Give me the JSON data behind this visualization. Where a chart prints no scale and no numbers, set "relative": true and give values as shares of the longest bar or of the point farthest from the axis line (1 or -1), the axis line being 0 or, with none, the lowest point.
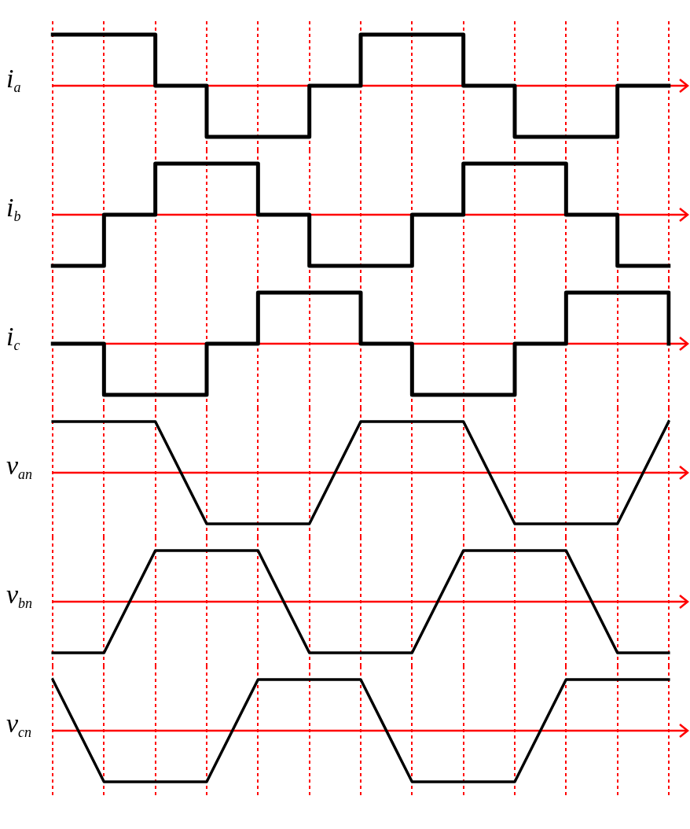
{
  "chart_data": [
    {
      "type": "step",
      "ylabel": "i$_{a}$",
      "relative": true,
      "grid": "x",
      "marker": "none",
      "categories": [
        null,
        null,
        null,
        null,
        null,
        null,
        null,
        null,
        null,
        null,
        null,
        null,
        null
      ],
      "ref_lines": [
        {
          "axis": "y",
          "value": 0,
          "color": "#ff0000"
        }
      ],
      "series": [
        {
          "color": "#000000",
          "values": [
            1,
            1,
            0,
            -1,
            -1,
            0,
            1,
            1,
            0,
            -1,
            -1,
            0,
            0
          ]
        }
      ]
    },
    {
      "type": "step",
      "ylabel": "i$_{b}$",
      "relative": true,
      "grid": "x",
      "marker": "none",
      "categories": [
        null,
        null,
        null,
        null,
        null,
        null,
        null,
        null,
        null,
        null,
        null,
        null,
        null
      ],
      "ref_lines": [
        {
          "axis": "y",
          "value": 0,
          "color": "#ff0000"
        }
      ],
      "series": [
        {
          "color": "#000000",
          "values": [
            -1,
            0,
            1,
            1,
            0,
            -1,
            -1,
            0,
            1,
            1,
            0,
            -1,
            -1
          ]
        }
      ]
    },
    {
      "type": "step",
      "ylabel": "i$_{c}$",
      "relative": true,
      "grid": "x",
      "marker": "none",
      "categories": [
        null,
        null,
        null,
        null,
        null,
        null,
        null,
        null,
        null,
        null,
        null,
        null,
        null
      ],
      "ref_lines": [
        {
          "axis": "y",
          "value": 0,
          "color": "#ff0000"
        }
      ],
      "series": [
        {
          "color": "#000000",
          "values": [
            0,
            -1,
            -1,
            0,
            1,
            1,
            0,
            -1,
            -1,
            0,
            1,
            1,
            0
          ]
        }
      ]
    },
    {
      "type": "line",
      "ylabel": "v$_{an}$",
      "relative": true,
      "grid": "x",
      "marker": "none",
      "categories": [
        null,
        null,
        null,
        null,
        null,
        null,
        null,
        null,
        null,
        null,
        null,
        null,
        null
      ],
      "ref_lines": [
        {
          "axis": "y",
          "value": 0,
          "color": "#ff0000"
        }
      ],
      "series": [
        {
          "color": "#000000",
          "values": [
            1,
            1,
            1,
            -1,
            -1,
            -1,
            1,
            1,
            1,
            -1,
            -1,
            -1,
            1
          ]
        }
      ]
    },
    {
      "type": "line",
      "ylabel": "v$_{bn}$",
      "relative": true,
      "grid": "x",
      "marker": "none",
      "categories": [
        null,
        null,
        null,
        null,
        null,
        null,
        null,
        null,
        null,
        null,
        null,
        null,
        null
      ],
      "ref_lines": [
        {
          "axis": "y",
          "value": 0,
          "color": "#ff0000"
        }
      ],
      "series": [
        {
          "color": "#000000",
          "values": [
            -1,
            -1,
            1,
            1,
            1,
            -1,
            -1,
            -1,
            1,
            1,
            1,
            -1,
            -1
          ]
        }
      ]
    },
    {
      "type": "line",
      "ylabel": "v$_{cn}$",
      "relative": true,
      "grid": "x",
      "marker": "none",
      "categories": [
        null,
        null,
        null,
        null,
        null,
        null,
        null,
        null,
        null,
        null,
        null,
        null,
        null
      ],
      "ref_lines": [
        {
          "axis": "y",
          "value": 0,
          "color": "#ff0000"
        }
      ],
      "series": [
        {
          "color": "#000000",
          "values": [
            1,
            -1,
            -1,
            -1,
            1,
            1,
            1,
            -1,
            -1,
            -1,
            1,
            1,
            1
          ]
        }
      ]
    }
  ]
}
